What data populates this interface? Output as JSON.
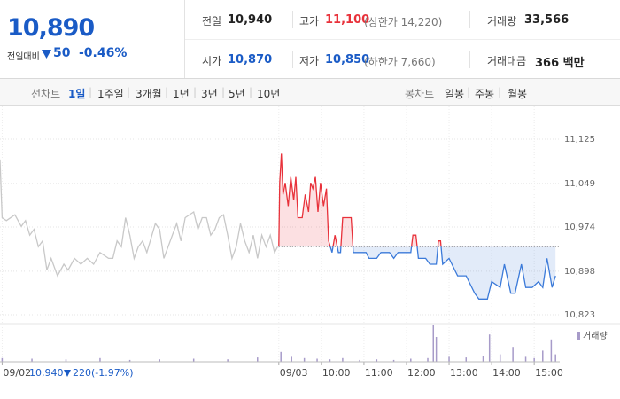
{
  "quote": {
    "price": "10,890",
    "change_label": "전일대비",
    "change": "50",
    "rate": "-0.46%"
  },
  "summary": [
    {
      "label": "전일",
      "value": "10,940"
    },
    {
      "label": "고가",
      "value": "11,100",
      "note": "(상한가 14,220)"
    },
    {
      "label": "거래량",
      "value": "33,566"
    },
    {
      "label": "시가",
      "value": "10,870"
    },
    {
      "label": "저가",
      "value": "10,850",
      "note": "(하한가 7,660)"
    },
    {
      "label": "거래대금",
      "value": "366 백만"
    }
  ],
  "tabs": {
    "line_label": "선차트",
    "line_periods": [
      "1일",
      "1주일",
      "3개월",
      "1년",
      "3년",
      "5년",
      "10년"
    ],
    "candle_label": "봉차트",
    "candle_periods": [
      "일봉",
      "주봉",
      "월봉"
    ]
  },
  "footer": {
    "price": "10,940",
    "change": "220",
    "rate": "(-1.97%)"
  },
  "chart_data": {
    "type": "line",
    "xlim": [
      -6.55,
      6.6
    ],
    "ylim": [
      10823,
      11125
    ],
    "yticks": [
      {
        "value": 10823,
        "label": "10,823"
      },
      {
        "value": 10898,
        "label": "10,898"
      },
      {
        "value": 10974,
        "label": "10,974"
      },
      {
        "value": 11049,
        "label": "11,049"
      },
      {
        "value": 11125,
        "label": "11,125"
      }
    ],
    "xticks": [
      {
        "value": -6.5,
        "label": "09/02"
      },
      {
        "value": 0,
        "label": "09/03"
      },
      {
        "value": 1,
        "label": "10:00"
      },
      {
        "value": 2,
        "label": "11:00"
      },
      {
        "value": 3,
        "label": "12:00"
      },
      {
        "value": 4,
        "label": "13:00"
      },
      {
        "value": 5,
        "label": "14:00"
      },
      {
        "value": 6,
        "label": "15:00"
      }
    ],
    "grid": true,
    "baseline": 10940,
    "series": [
      {
        "color": "#c8c8c8",
        "x": [
          -6.55,
          -6.5,
          -6.4,
          -6.2,
          -6.05,
          -5.95,
          -5.85,
          -5.75,
          -5.65,
          -5.55,
          -5.45,
          -5.35,
          -5.2,
          -5.05,
          -4.95,
          -4.8,
          -4.65,
          -4.5,
          -4.35,
          -4.2,
          -4.0,
          -3.9,
          -3.8,
          -3.7,
          -3.6,
          -3.5,
          -3.4,
          -3.3,
          -3.2,
          -3.1,
          -2.9,
          -2.8,
          -2.7,
          -2.6,
          -2.5,
          -2.4,
          -2.3,
          -2.2,
          -2.0,
          -1.9,
          -1.8,
          -1.7,
          -1.6,
          -1.5,
          -1.4,
          -1.3,
          -1.2,
          -1.1,
          -1.0,
          -0.9,
          -0.8,
          -0.7,
          -0.6,
          -0.5,
          -0.4,
          -0.3,
          -0.2,
          -0.1,
          -0.03
        ],
        "values": [
          11090,
          10990,
          10985,
          10995,
          10975,
          10985,
          10960,
          10970,
          10940,
          10950,
          10900,
          10920,
          10890,
          10910,
          10900,
          10920,
          10910,
          10920,
          10910,
          10930,
          10920,
          10920,
          10950,
          10940,
          10990,
          10960,
          10920,
          10940,
          10950,
          10930,
          10980,
          10970,
          10920,
          10940,
          10960,
          10980,
          10950,
          10990,
          11000,
          10970,
          10990,
          10990,
          10960,
          10970,
          10990,
          10995,
          10960,
          10920,
          10940,
          10980,
          10950,
          10930,
          10960,
          10920,
          10960,
          10940,
          10960,
          10930,
          10940
        ]
      },
      {
        "color_up": "#e8313a",
        "color_down": "#3b7ad9",
        "x": [
          0,
          0.02,
          0.06,
          0.1,
          0.15,
          0.22,
          0.28,
          0.35,
          0.4,
          0.45,
          0.55,
          0.62,
          0.7,
          0.75,
          0.8,
          0.86,
          0.92,
          0.98,
          1.05,
          1.12,
          1.17,
          1.25,
          1.32,
          1.4,
          1.45,
          1.5,
          1.6,
          1.7,
          1.75,
          1.9,
          2.05,
          2.12,
          2.3,
          2.4,
          2.6,
          2.7,
          2.8,
          3.1,
          3.15,
          3.22,
          3.28,
          3.45,
          3.55,
          3.7,
          3.75,
          3.8,
          3.85,
          4.0,
          4.2,
          4.4,
          4.6,
          4.7,
          4.9,
          5.0,
          5.2,
          5.3,
          5.45,
          5.55,
          5.7,
          5.8,
          5.95,
          6.1,
          6.2,
          6.3,
          6.42,
          6.5
        ],
        "values": [
          10940,
          11050,
          11100,
          11030,
          11050,
          11010,
          11060,
          11020,
          11060,
          10990,
          10990,
          11030,
          11000,
          11050,
          11040,
          11060,
          11000,
          11050,
          11010,
          11040,
          10950,
          10930,
          10960,
          10930,
          10930,
          10990,
          10990,
          10990,
          10930,
          10930,
          10930,
          10920,
          10920,
          10930,
          10930,
          10920,
          10930,
          10930,
          10960,
          10960,
          10920,
          10920,
          10910,
          10910,
          10950,
          10950,
          10910,
          10920,
          10890,
          10890,
          10860,
          10850,
          10850,
          10880,
          10870,
          10910,
          10860,
          10860,
          10910,
          10870,
          10870,
          10880,
          10870,
          10920,
          10870,
          10890
        ]
      }
    ],
    "volume": {
      "name": "거래량",
      "color": "#a79bc9",
      "x": [
        -6.5,
        -5.8,
        -5.0,
        -4.2,
        -3.5,
        -2.8,
        -2.0,
        -1.2,
        -0.5,
        0.05,
        0.3,
        0.6,
        0.9,
        1.2,
        1.5,
        1.9,
        2.3,
        2.7,
        3.1,
        3.5,
        3.63,
        3.7,
        4.0,
        4.4,
        4.8,
        4.95,
        5.2,
        5.5,
        5.8,
        6.0,
        6.2,
        6.4,
        6.5
      ],
      "values": [
        300,
        250,
        200,
        300,
        150,
        200,
        250,
        200,
        350,
        800,
        400,
        300,
        250,
        200,
        300,
        150,
        200,
        150,
        250,
        300,
        3000,
        2000,
        400,
        350,
        500,
        2200,
        600,
        1200,
        400,
        300,
        900,
        1800,
        600
      ]
    }
  }
}
